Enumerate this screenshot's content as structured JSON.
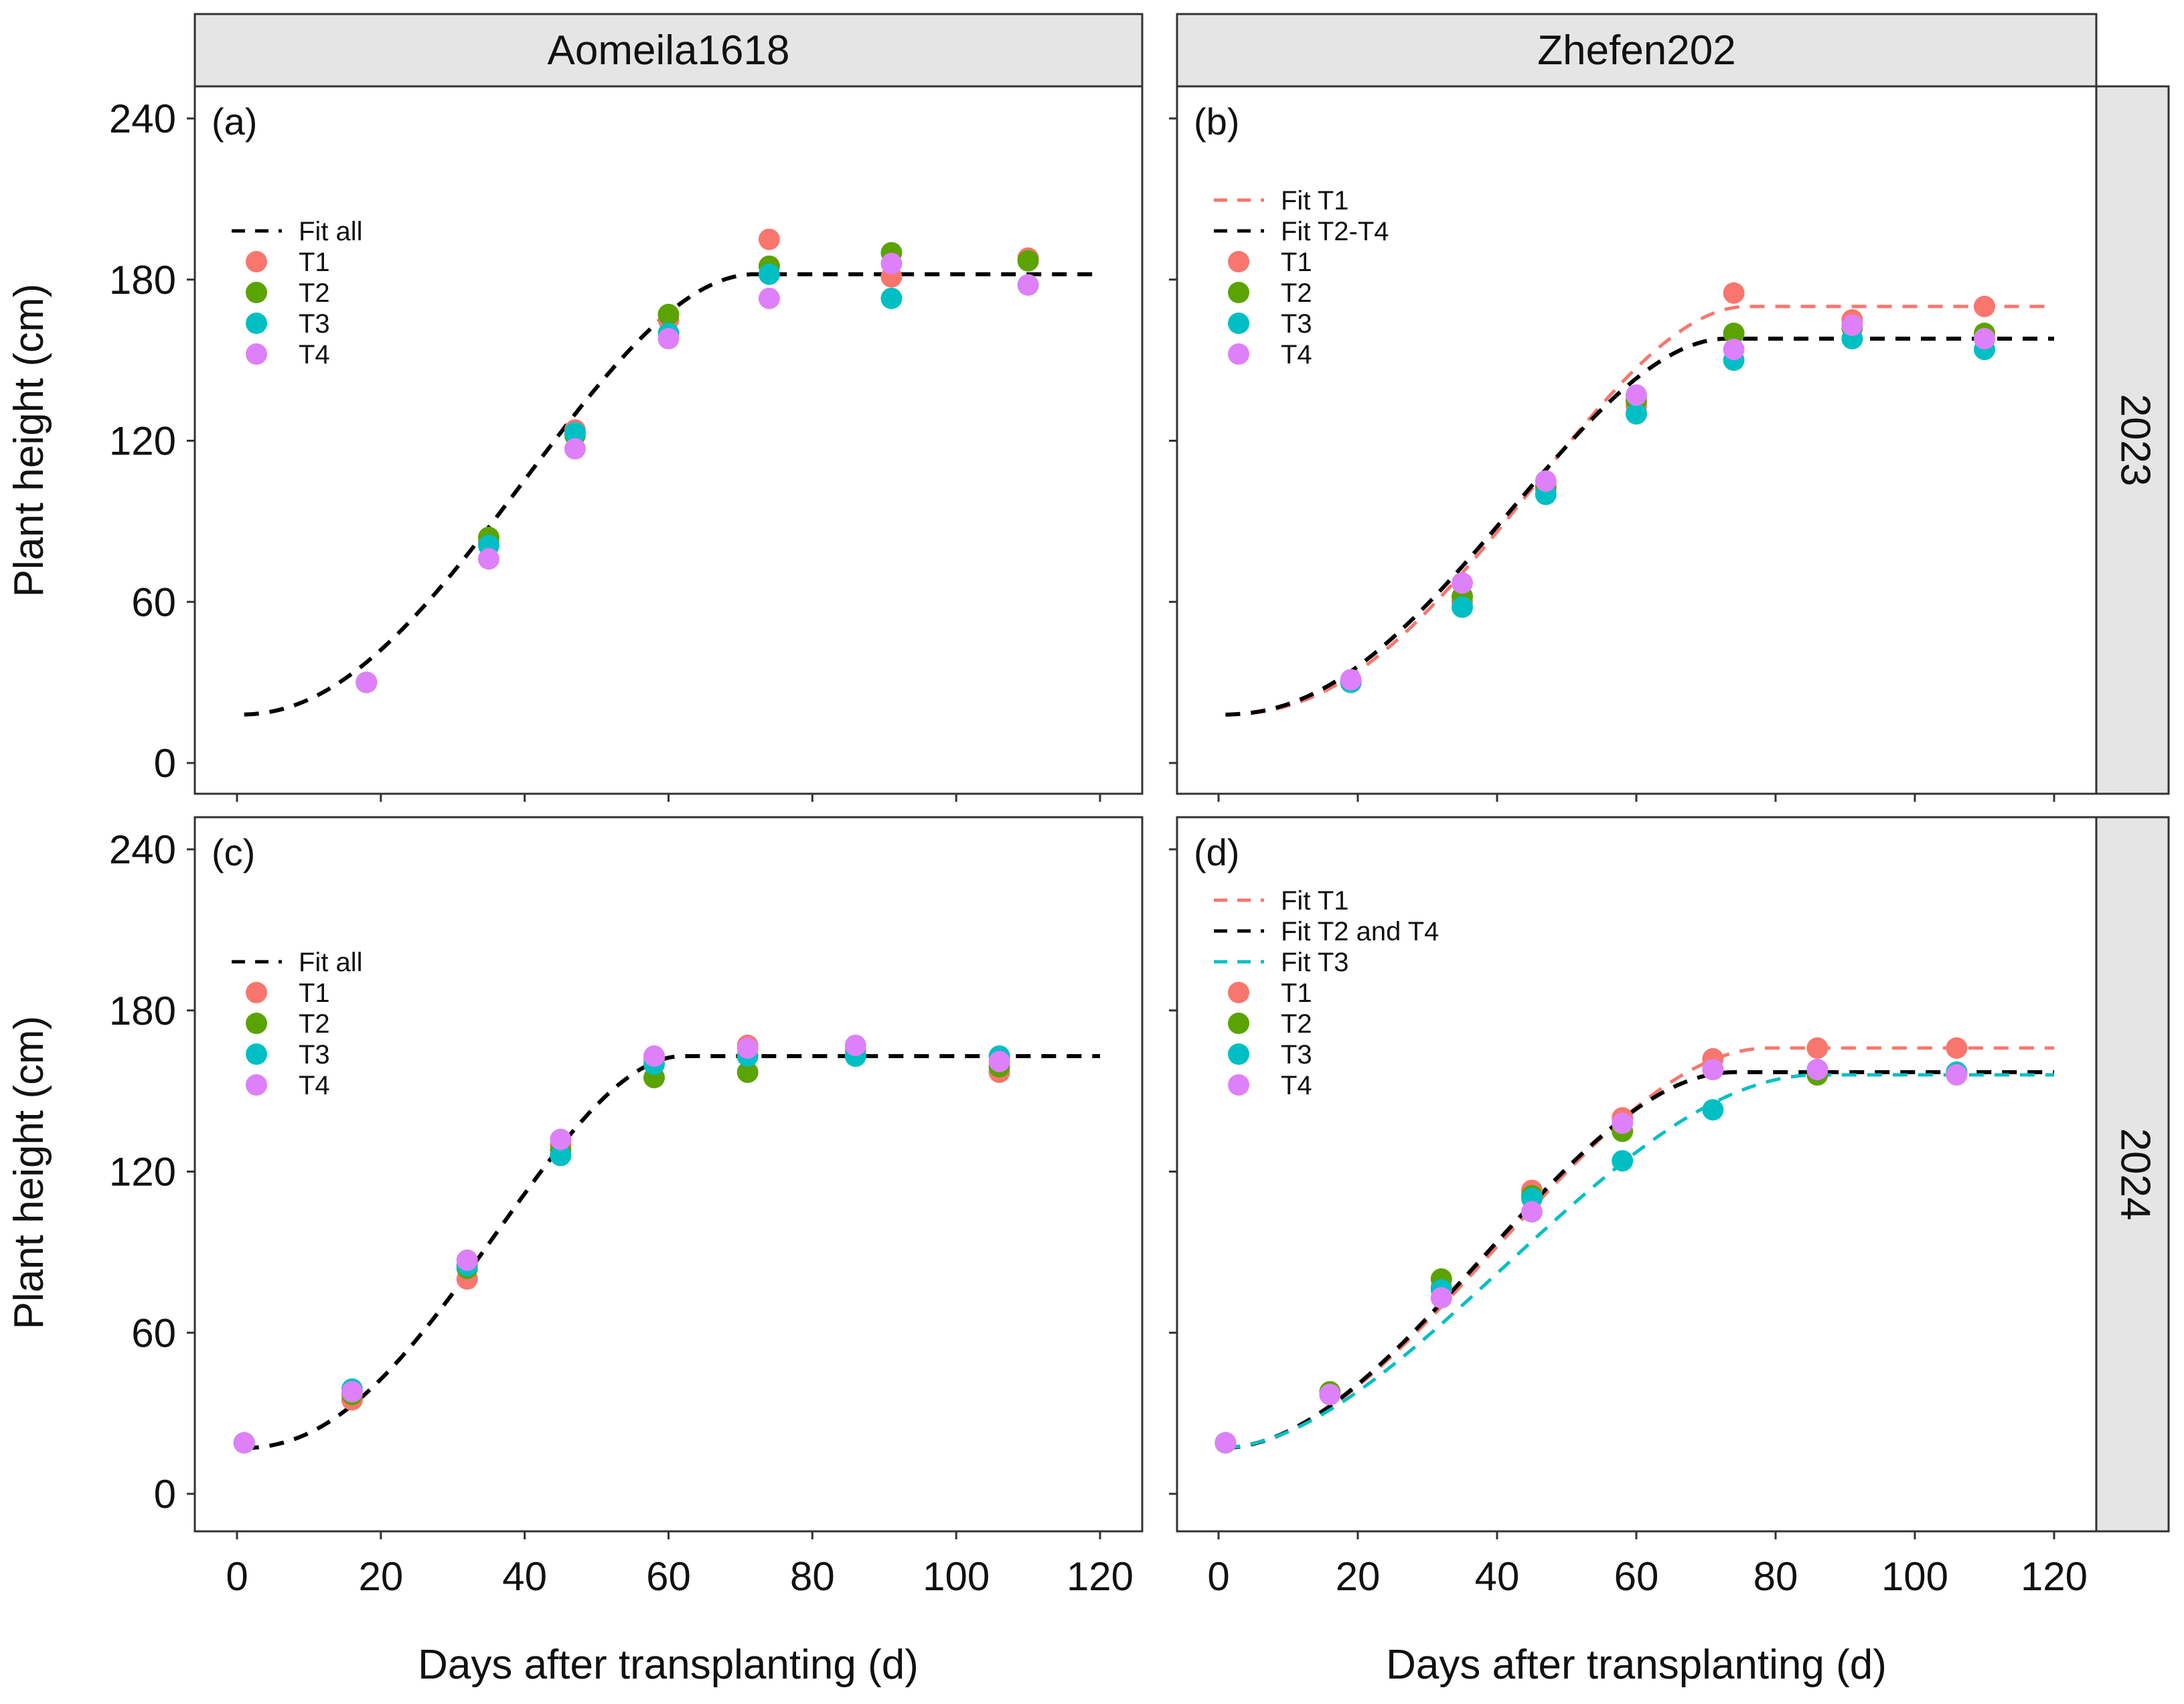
{
  "chart_data": {
    "type": "scatter",
    "xlabel": "Days after transplanting (d)",
    "ylabel": "Plant height (cm)",
    "xlim": [
      0,
      120
    ],
    "ylim": [
      0,
      240
    ],
    "xticks": [
      0,
      20,
      40,
      60,
      80,
      100,
      120
    ],
    "yticks": [
      0,
      60,
      120,
      180,
      240
    ],
    "columns": [
      "Aomeila1618",
      "Zhefen202"
    ],
    "rows": [
      "2023",
      "2024"
    ],
    "colors": {
      "T1": "#F8766D",
      "T2": "#5BA300",
      "T3": "#00BFC4",
      "T4": "#DE80F9",
      "black": "#000000"
    },
    "panels": [
      {
        "label": "(a)",
        "column": "Aomeila1618",
        "row": "2023",
        "days": [
          18,
          35,
          47,
          60,
          74,
          91,
          110
        ],
        "series": [
          {
            "name": "T1",
            "values": [
              30,
              82,
              124,
              165,
              195,
              181,
              188
            ]
          },
          {
            "name": "T2",
            "values": [
              30,
              84,
              122,
              167,
              185,
              190,
              187
            ]
          },
          {
            "name": "T3",
            "values": [
              30,
              81,
              123,
              160,
              182,
              173,
              178
            ]
          },
          {
            "name": "T4",
            "values": [
              30,
              76,
              117,
              158,
              173,
              186,
              178
            ]
          }
        ],
        "fits": [
          {
            "name": "Fit all",
            "color": "black",
            "y0": 18,
            "ymax": 182,
            "tm": 40,
            "te": 72,
            "start": 1
          }
        ]
      },
      {
        "label": "(b)",
        "column": "Zhefen202",
        "row": "2023",
        "days": [
          19,
          35,
          47,
          60,
          74,
          91,
          110
        ],
        "series": [
          {
            "name": "T1",
            "values": [
              30,
              60,
              102,
              133,
              175,
              165,
              170
            ]
          },
          {
            "name": "T2",
            "values": [
              30,
              62,
              103,
              135,
              160,
              162,
              160
            ]
          },
          {
            "name": "T3",
            "values": [
              30,
              58,
              100,
              130,
              150,
              158,
              154
            ]
          },
          {
            "name": "T4",
            "values": [
              31,
              67,
              105,
              137,
              154,
              163,
              158
            ]
          }
        ],
        "fits": [
          {
            "name": "Fit T1",
            "color": "T1",
            "y0": 18,
            "ymax": 170,
            "tm": 45,
            "te": 76,
            "start": 1
          },
          {
            "name": "Fit T2-T4",
            "color": "black",
            "y0": 18,
            "ymax": 158,
            "tm": 42,
            "te": 73,
            "start": 1
          }
        ]
      },
      {
        "label": "(c)",
        "column": "Aomeila1618",
        "row": "2024",
        "days": [
          1,
          16,
          32,
          45,
          58,
          71,
          86,
          106
        ],
        "series": [
          {
            "name": "T1",
            "values": [
              19,
              35,
              80,
              130,
              162,
              167,
              165,
              157
            ]
          },
          {
            "name": "T2",
            "values": [
              19,
              37,
              84,
              128,
              155,
              157,
              163,
              159
            ]
          },
          {
            "name": "T3",
            "values": [
              19,
              39,
              85,
              126,
              160,
              163,
              163,
              163
            ]
          },
          {
            "name": "T4",
            "values": [
              19,
              38,
              87,
              132,
              163,
              166,
              167,
              161
            ]
          }
        ],
        "fits": [
          {
            "name": "Fit all",
            "color": "black",
            "y0": 17,
            "ymax": 163,
            "tm": 36,
            "te": 62,
            "start": 1
          }
        ]
      },
      {
        "label": "(d)",
        "column": "Zhefen202",
        "row": "2024",
        "days": [
          1,
          16,
          32,
          45,
          58,
          71,
          86,
          106
        ],
        "series": [
          {
            "name": "T1",
            "values": [
              19,
              37,
              77,
              113,
              140,
              162,
              166,
              166
            ]
          },
          {
            "name": "T2",
            "values": [
              19,
              38,
              80,
              111,
              135,
              158,
              156,
              157
            ]
          },
          {
            "name": "T3",
            "values": [
              19,
              37,
              76,
              110,
              124,
              143,
              158,
              157
            ]
          },
          {
            "name": "T4",
            "values": [
              19,
              37,
              73,
              105,
              138,
              158,
              158,
              156
            ]
          }
        ],
        "fits": [
          {
            "name": "Fit T1",
            "color": "T1",
            "y0": 17,
            "ymax": 166,
            "tm": 40,
            "te": 79,
            "start": 1
          },
          {
            "name": "Fit T2 and T4",
            "color": "black",
            "y0": 17,
            "ymax": 157,
            "tm": 38,
            "te": 74,
            "start": 1
          },
          {
            "name": "Fit T3",
            "color": "T3",
            "y0": 17,
            "ymax": 156,
            "tm": 41,
            "te": 86,
            "start": 1
          }
        ]
      }
    ]
  }
}
